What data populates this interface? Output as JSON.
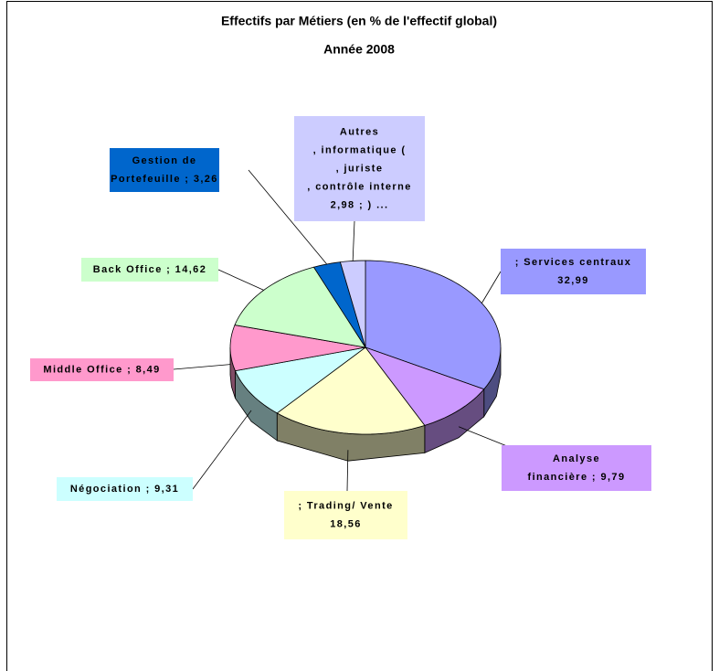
{
  "chart_data": {
    "type": "pie3d",
    "title": "Effectifs par Métiers (en % de l'effectif global)",
    "subtitle": "Année 2008",
    "values": [
      32.99,
      9.79,
      18.56,
      9.31,
      8.49,
      14.62,
      3.26,
      2.98
    ],
    "value_labels": [
      [
        "; Services centraux",
        "32,99"
      ],
      [
        "Analyse",
        "financière ; 9,79"
      ],
      [
        "; Trading/ Vente",
        "18,56"
      ],
      [
        "Négociation ; 9,31"
      ],
      [
        "Middle Office ; 8,49"
      ],
      [
        "Back Office ; 14,62"
      ],
      [
        "Gestion de",
        "Portefeuille ; 3,26"
      ],
      [
        "Autres",
        ", informatique (",
        ", juriste",
        ", contrôle interne",
        "2,98 ; ) ..."
      ]
    ],
    "colors": [
      "#9999ff",
      "#cc99ff",
      "#ffffcc",
      "#ccffff",
      "#ff99cc",
      "#ccffcc",
      "#0066cc",
      "#ccccff"
    ]
  }
}
